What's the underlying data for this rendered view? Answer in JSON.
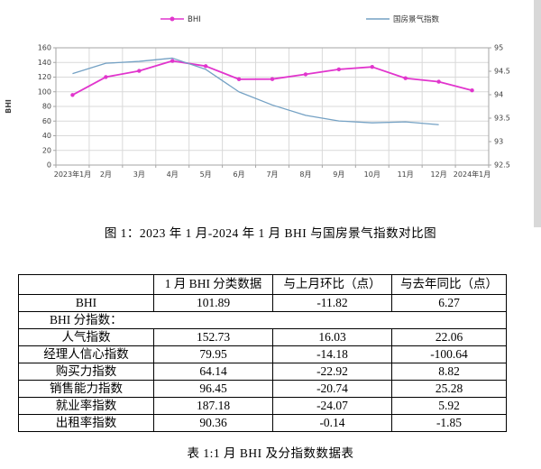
{
  "chart": {
    "y_left": {
      "title": "BHI",
      "ticks": [
        "160",
        "140",
        "120",
        "100",
        "80",
        "60",
        "40",
        "20",
        "0"
      ]
    },
    "y_right": {
      "ticks": [
        "95",
        "94.5",
        "94",
        "93.5",
        "93",
        "92.5"
      ]
    },
    "colors": {
      "bhi_line": "#e135cd",
      "climate_line": "#74a1c4",
      "gridline": "#d9d9d9",
      "axis": "#a6a6a6"
    }
  },
  "chart_data": {
    "type": "line",
    "categories": [
      "2023年1月",
      "2月",
      "3月",
      "4月",
      "5月",
      "6月",
      "7月",
      "8月",
      "9月",
      "10月",
      "11月",
      "12月",
      "2024年1月"
    ],
    "series": [
      {
        "name": "BHI",
        "axis": "left",
        "color": "#e135cd",
        "marker": true,
        "values": [
          95.62,
          120.1,
          128.5,
          142.1,
          135.0,
          117.1,
          117.3,
          123.8,
          130.6,
          133.9,
          118.5,
          113.71,
          101.89
        ]
      },
      {
        "name": "国房景气指数",
        "axis": "right",
        "color": "#74a1c4",
        "marker": false,
        "values": [
          94.45,
          94.67,
          94.71,
          94.78,
          94.54,
          94.06,
          93.78,
          93.56,
          93.44,
          93.4,
          93.42,
          93.36,
          null
        ]
      }
    ],
    "left_axis": {
      "label": "BHI",
      "range": [
        0,
        160
      ],
      "step": 20
    },
    "right_axis": {
      "range": [
        92.5,
        95
      ],
      "step": 0.5
    },
    "grid": true,
    "legend_position": "top"
  },
  "figure_caption": "图 1：2023 年 1 月-2024 年 1 月 BHI 与国房景气指数对比图",
  "table": {
    "headers": [
      "",
      "1 月 BHI 分类数据",
      "与上月环比（点）",
      "与去年同比（点）"
    ],
    "rows": [
      {
        "label": "BHI",
        "cells": [
          "101.89",
          "-11.82",
          "6.27"
        ]
      },
      {
        "label": "BHI 分指数：",
        "section": true,
        "cells": [
          "",
          "",
          ""
        ]
      },
      {
        "label": "人气指数",
        "cells": [
          "152.73",
          "16.03",
          "22.06"
        ]
      },
      {
        "label": "经理人信心指数",
        "cells": [
          "79.95",
          "-14.18",
          "-100.64"
        ]
      },
      {
        "label": "购买力指数",
        "cells": [
          "64.14",
          "-22.92",
          "8.82"
        ]
      },
      {
        "label": "销售能力指数",
        "cells": [
          "96.45",
          "-20.74",
          "25.28"
        ]
      },
      {
        "label": "就业率指数",
        "cells": [
          "187.18",
          "-24.07",
          "5.92"
        ]
      },
      {
        "label": "出租率指数",
        "cells": [
          "90.36",
          "-0.14",
          "-1.85"
        ]
      }
    ]
  },
  "table_caption": "表 1:1 月 BHI 及分指数数据表"
}
